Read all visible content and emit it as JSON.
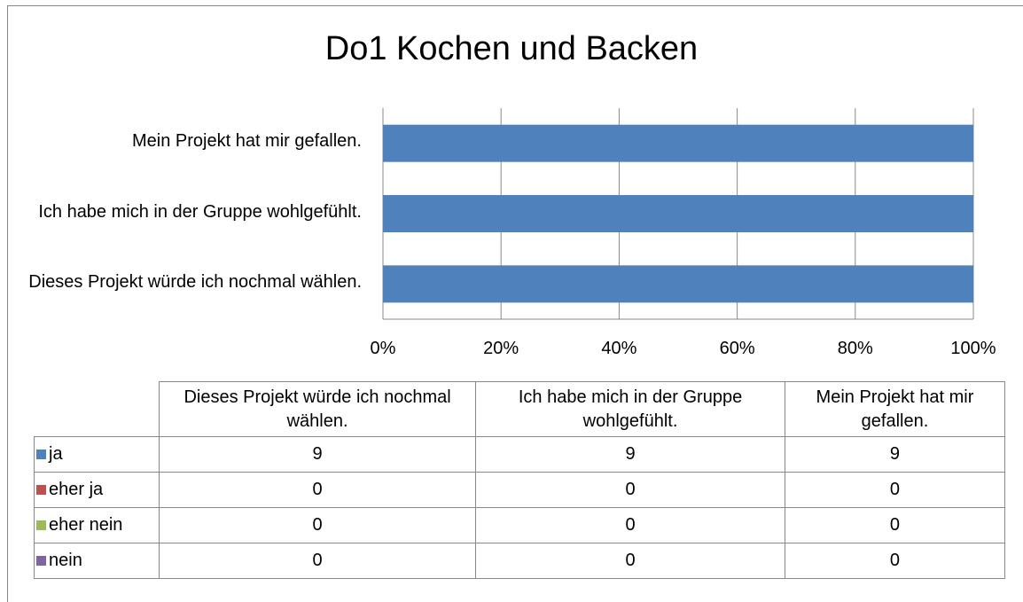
{
  "chart_data": {
    "type": "bar",
    "orientation": "horizontal",
    "stacked": "percent",
    "title": "Do1 Kochen und Backen",
    "categories": [
      "Dieses Projekt würde ich nochmal wählen.",
      "Ich habe mich in der Gruppe wohlgefühlt.",
      "Mein Projekt hat mir gefallen."
    ],
    "series": [
      {
        "name": "ja",
        "color": "#4f81bd",
        "values": [
          9,
          9,
          9
        ]
      },
      {
        "name": "eher ja",
        "color": "#c0504d",
        "values": [
          0,
          0,
          0
        ]
      },
      {
        "name": "eher nein",
        "color": "#9bbb59",
        "values": [
          0,
          0,
          0
        ]
      },
      {
        "name": "nein",
        "color": "#8064a2",
        "values": [
          0,
          0,
          0
        ]
      }
    ],
    "xlim": [
      0,
      100
    ],
    "xticks": [
      {
        "value": 0,
        "label": "0%"
      },
      {
        "value": 20,
        "label": "20%"
      },
      {
        "value": 40,
        "label": "40%"
      },
      {
        "value": 60,
        "label": "60%"
      },
      {
        "value": 80,
        "label": "80%"
      },
      {
        "value": 100,
        "label": "100%"
      }
    ],
    "grid": true,
    "data_table": true
  }
}
